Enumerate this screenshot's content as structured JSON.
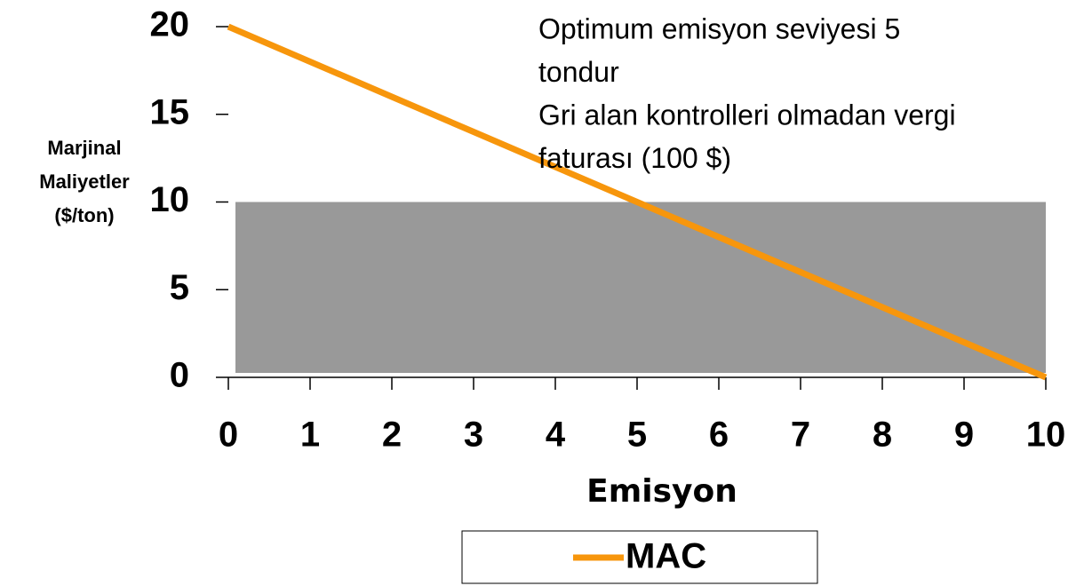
{
  "chart_data": {
    "type": "line",
    "x": [
      0,
      1,
      2,
      3,
      4,
      5,
      6,
      7,
      8,
      9,
      10
    ],
    "series": [
      {
        "name": "MAC",
        "color": "#f7960c",
        "values": [
          20,
          18,
          16,
          14,
          12,
          10,
          8,
          6,
          4,
          2,
          0
        ]
      }
    ],
    "shaded_area": {
      "x": [
        0,
        10
      ],
      "y": [
        0,
        10
      ],
      "color": "#999999"
    },
    "xlim": [
      0,
      10
    ],
    "xticks": [
      0,
      1,
      2,
      3,
      4,
      5,
      6,
      7,
      8,
      9,
      10
    ],
    "ylim": [
      0,
      20
    ],
    "yticks": [
      0,
      5,
      10,
      15,
      20
    ],
    "xlabel": "Emisyon",
    "ylabel": [
      "Marjinal",
      "Maliyetler",
      "($/ton)"
    ],
    "annotations": [
      "Optimum emisyon seviyesi 5",
      "tondur",
      "Gri alan kontrolleri olmadan vergi",
      "faturası (100 $)"
    ],
    "legend": "bottom"
  }
}
